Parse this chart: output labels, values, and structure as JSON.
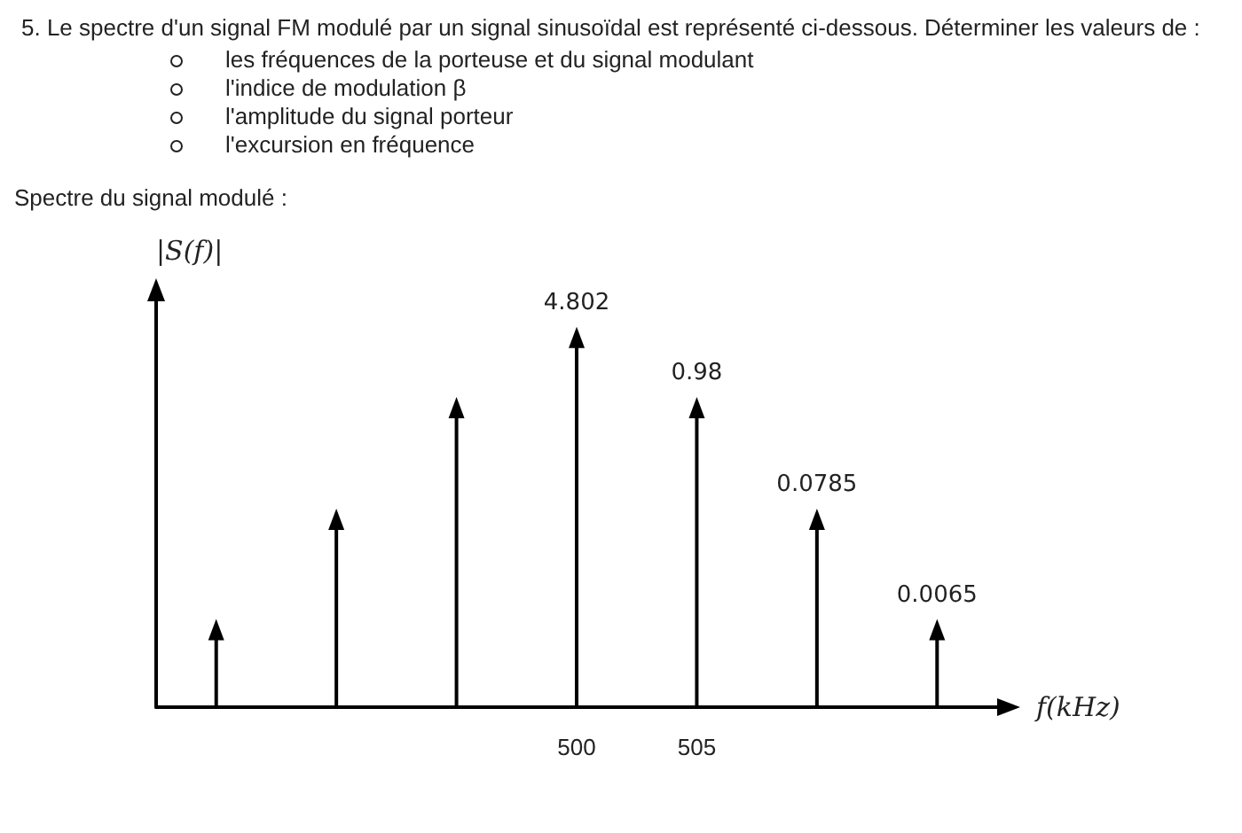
{
  "chart_data": {
    "type": "lollipop",
    "title": "5. Le spectre d'un signal FM modulé par un signal sinusoïdal est représenté ci-dessous. Déterminer les valeurs de :",
    "annotations": [
      "les fréquences de la porteuse et du signal modulant",
      "l'indice de modulation β",
      "l'amplitude du signal porteur",
      "l'excursion en fréquence",
      "Spectre du signal modulé :"
    ],
    "xlabel": "f(kHz)",
    "ylabel": "|S(f)|",
    "categories": [
      null,
      null,
      null,
      "500",
      "505",
      null,
      null
    ],
    "values": [
      0.0065,
      0.0785,
      0.98,
      4.802,
      0.98,
      0.0785,
      0.0065
    ],
    "value_labels": [
      null,
      null,
      null,
      "4.802",
      "0.98",
      "0.0785",
      "0.0065"
    ],
    "color": "#000000",
    "marker": "triangle",
    "log": true,
    "tick_labels": "x",
    "grid": false
  }
}
